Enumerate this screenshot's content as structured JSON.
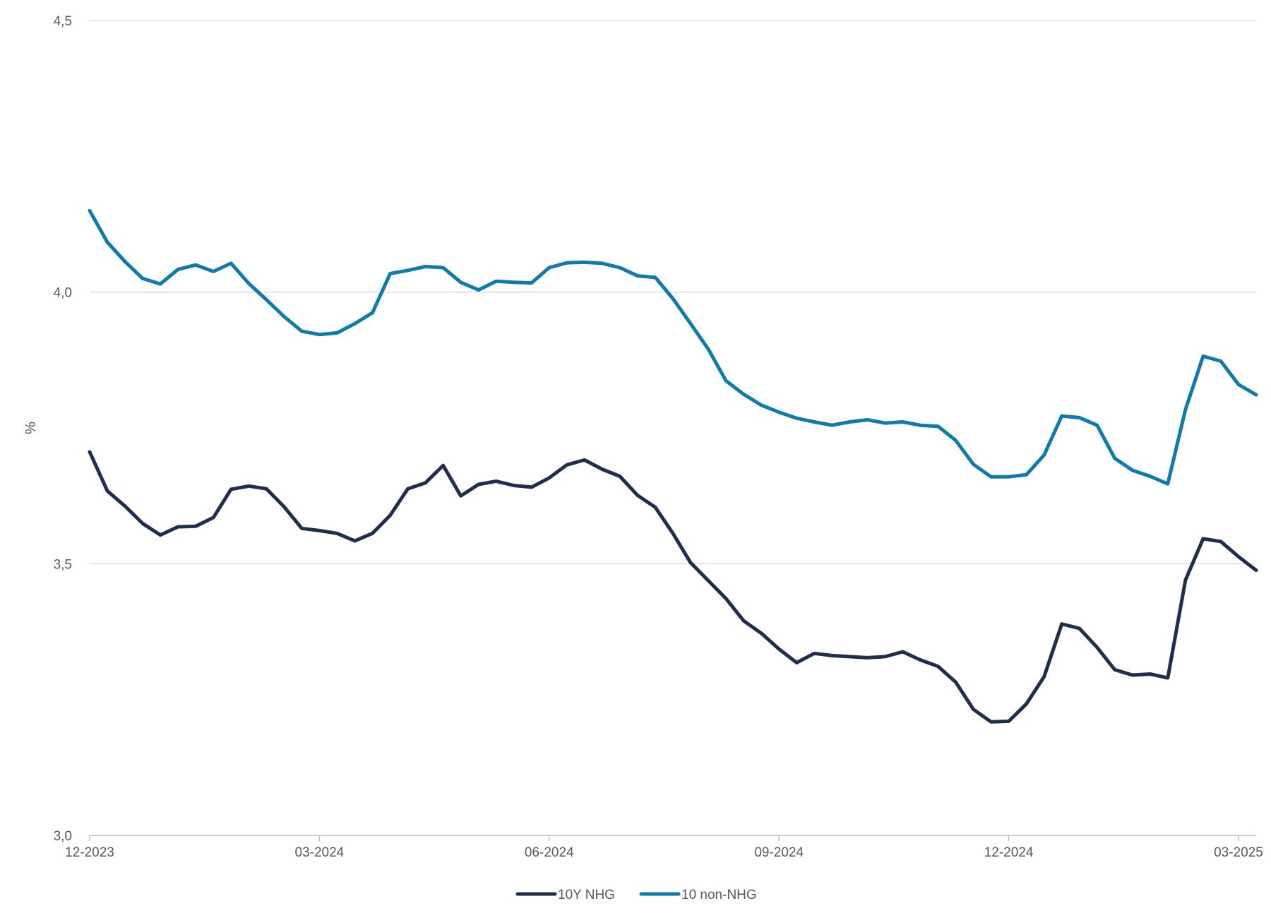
{
  "chart_data": {
    "type": "line",
    "title": "",
    "xlabel": "",
    "ylabel": "%",
    "ylim": [
      3.0,
      4.5
    ],
    "y_ticks": [
      "3,0",
      "3,5",
      "4,0",
      "4,5"
    ],
    "y_tick_values": [
      3.0,
      3.5,
      4.0,
      4.5
    ],
    "x_ticks": [
      "12-2023",
      "03-2024",
      "06-2024",
      "09-2024",
      "12-2024",
      "03-2025"
    ],
    "x_tick_index": [
      0,
      13,
      26,
      39,
      52,
      65
    ],
    "grid": "horizontal",
    "legend_position": "bottom-center",
    "colors": {
      "10Y NHG": "#1f2d4f",
      "10 non-NHG": "#0f7bad"
    },
    "series": [
      {
        "name": "10Y NHG",
        "values": [
          3.706,
          3.634,
          3.606,
          3.574,
          3.553,
          3.568,
          3.569,
          3.585,
          3.637,
          3.643,
          3.638,
          3.605,
          3.565,
          3.561,
          3.556,
          3.542,
          3.556,
          3.589,
          3.638,
          3.649,
          3.681,
          3.625,
          3.646,
          3.652,
          3.644,
          3.641,
          3.658,
          3.682,
          3.691,
          3.674,
          3.661,
          3.626,
          3.604,
          3.556,
          3.502,
          3.469,
          3.436,
          3.395,
          3.372,
          3.343,
          3.318,
          3.335,
          3.331,
          3.329,
          3.327,
          3.329,
          3.338,
          3.323,
          3.311,
          3.282,
          3.232,
          3.209,
          3.21,
          3.242,
          3.292,
          3.389,
          3.381,
          3.346,
          3.305,
          3.295,
          3.297,
          3.29,
          3.47,
          3.546,
          3.541,
          3.513,
          3.488
        ]
      },
      {
        "name": "10 non-NHG",
        "values": [
          4.15,
          4.092,
          4.056,
          4.025,
          4.015,
          4.042,
          4.05,
          4.038,
          4.053,
          4.016,
          3.986,
          3.955,
          3.928,
          3.922,
          3.925,
          3.942,
          3.962,
          4.034,
          4.04,
          4.047,
          4.045,
          4.018,
          4.004,
          4.02,
          4.018,
          4.017,
          4.045,
          4.054,
          4.055,
          4.053,
          4.045,
          4.03,
          4.027,
          3.988,
          3.942,
          3.895,
          3.837,
          3.812,
          3.792,
          3.779,
          3.768,
          3.761,
          3.755,
          3.761,
          3.765,
          3.759,
          3.761,
          3.755,
          3.753,
          3.727,
          3.683,
          3.66,
          3.66,
          3.664,
          3.7,
          3.772,
          3.769,
          3.755,
          3.694,
          3.672,
          3.661,
          3.647,
          3.784,
          3.882,
          3.873,
          3.83,
          3.811
        ]
      }
    ]
  }
}
